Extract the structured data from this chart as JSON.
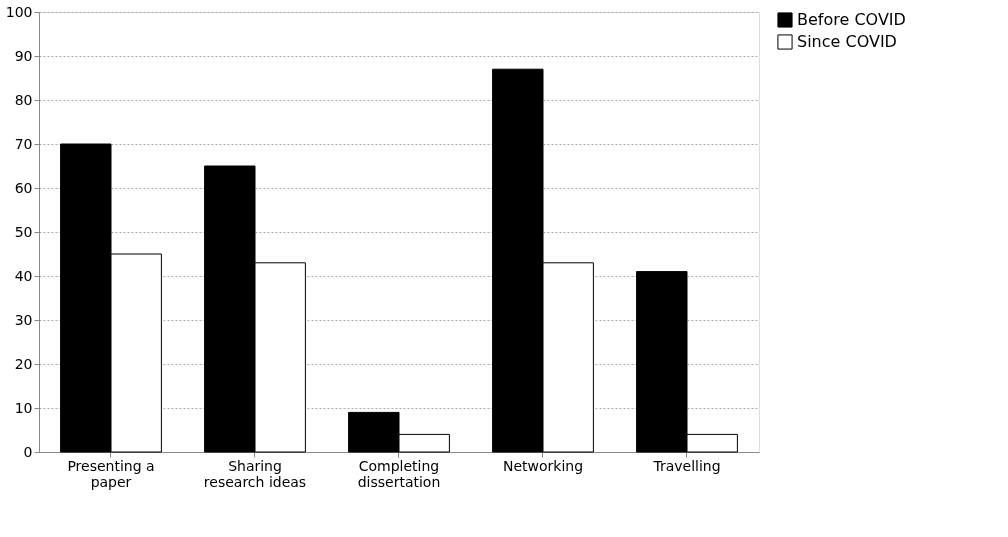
{
  "chart_data": {
    "type": "bar",
    "categories": [
      "Presenting a paper",
      "Sharing research ideas",
      "Completing dissertation",
      "Networking",
      "Travelling"
    ],
    "series": [
      {
        "name": "Before COVID",
        "color": "#000000",
        "values": [
          70,
          65,
          9,
          87,
          41
        ]
      },
      {
        "name": "Since COVID",
        "color": "#ffffff",
        "values": [
          45,
          43,
          4,
          43,
          4
        ]
      }
    ],
    "ylim": [
      0,
      100
    ],
    "yticks": [
      0,
      10,
      20,
      30,
      40,
      50,
      60,
      70,
      80,
      90,
      100
    ],
    "grid": "y",
    "legend": "right"
  }
}
